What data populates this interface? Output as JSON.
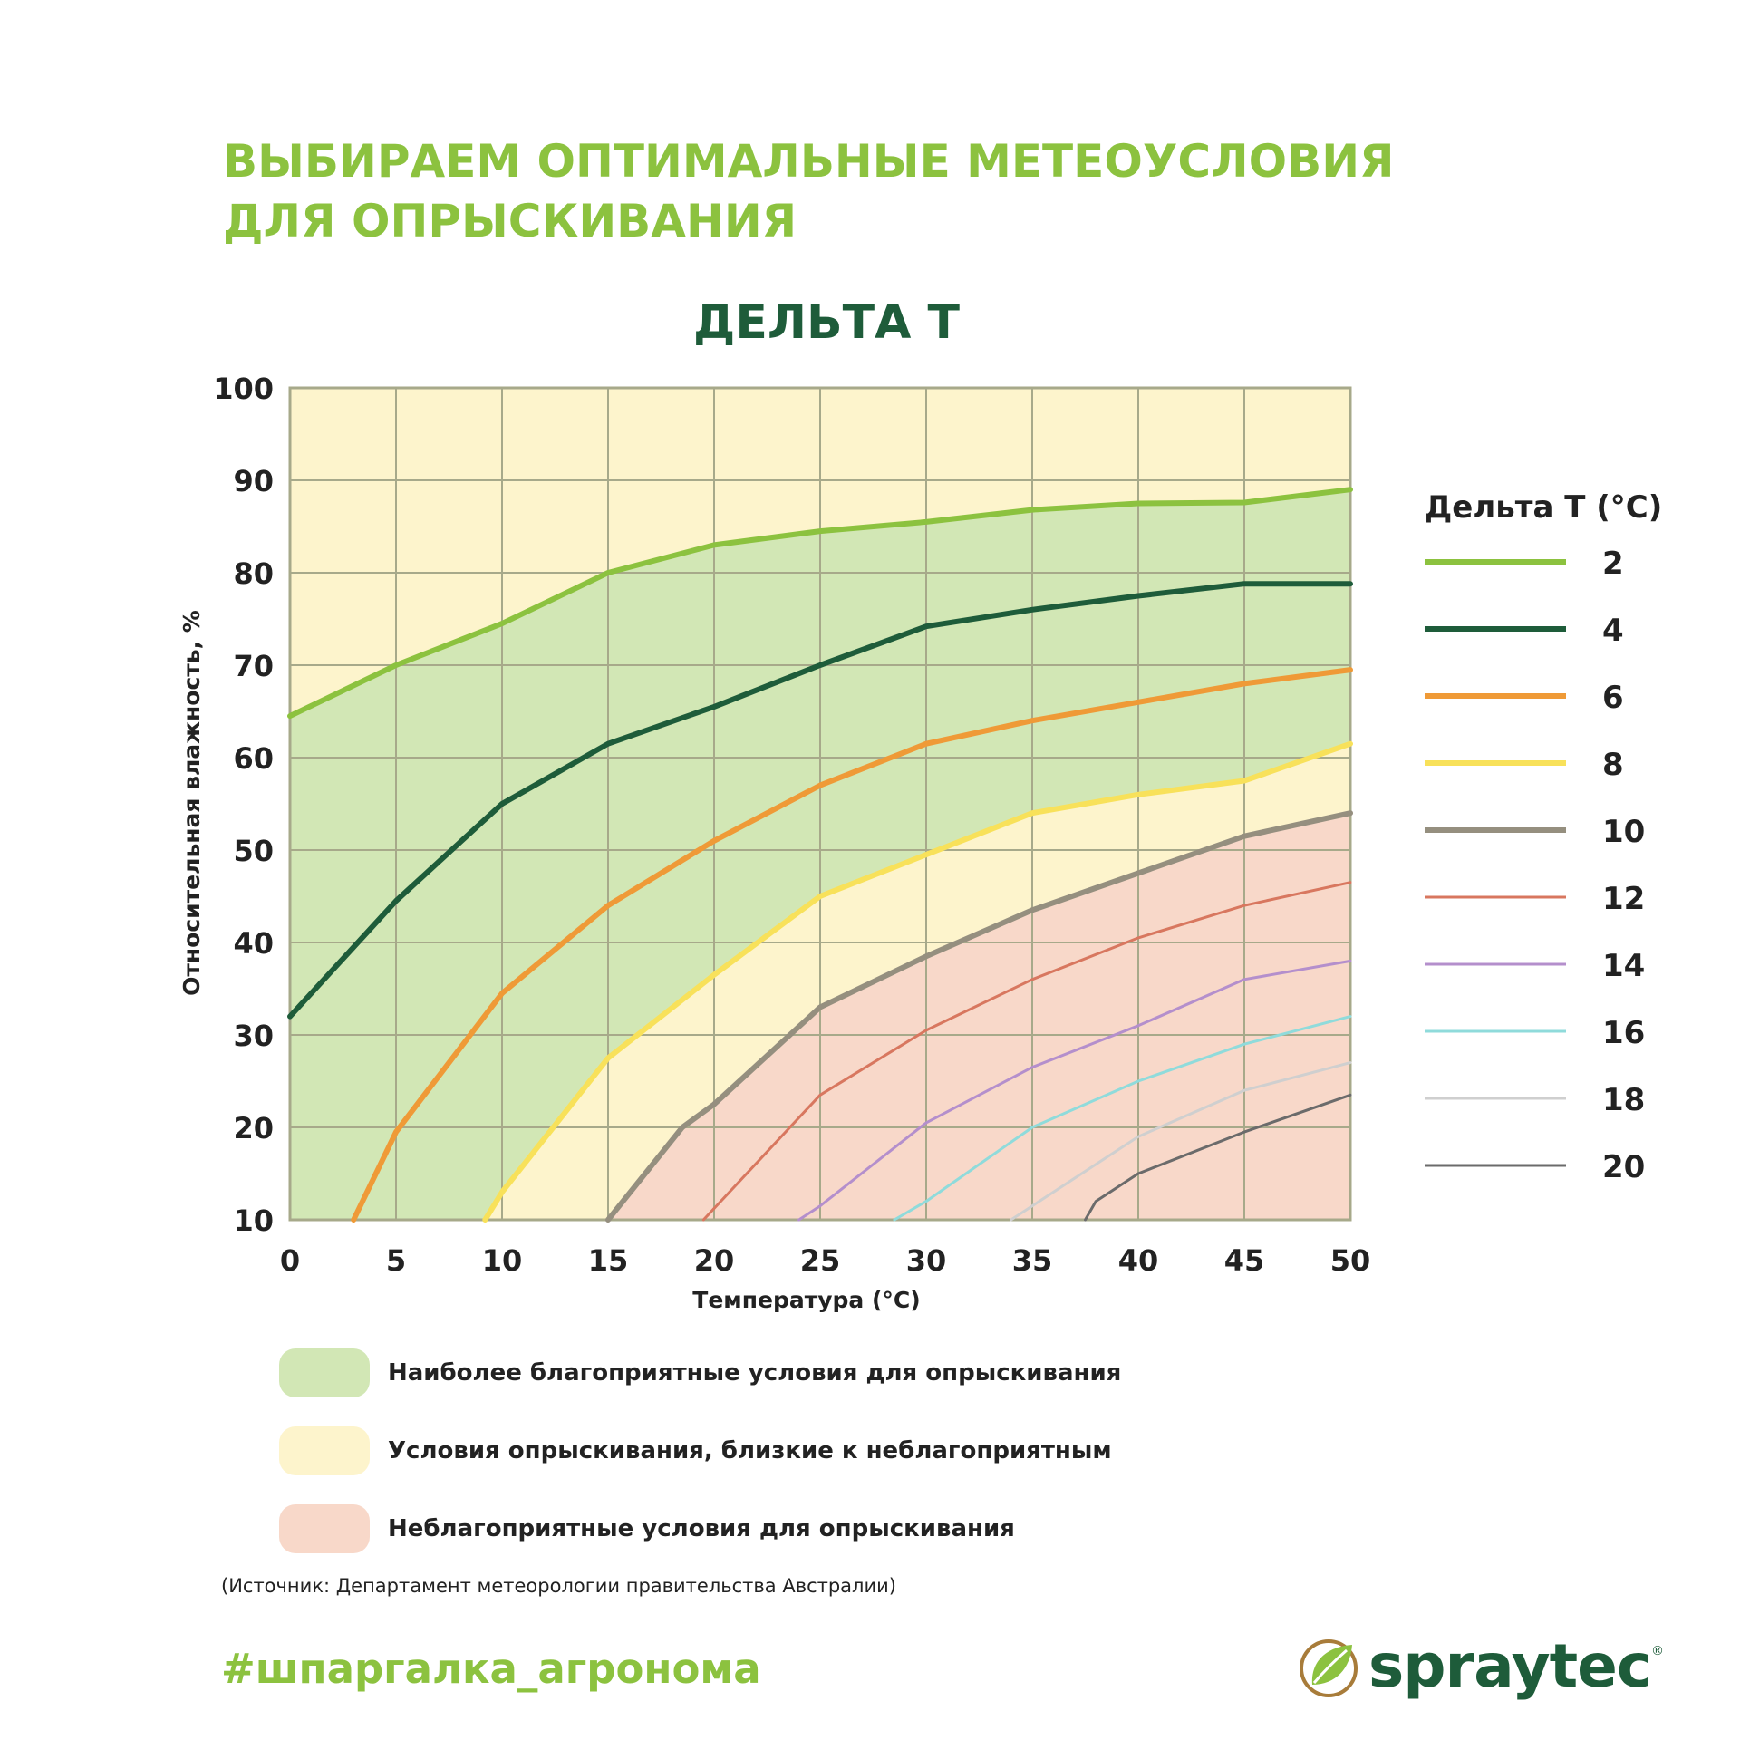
{
  "header": {
    "line1": "ВЫБИРАЕМ ОПТИМАЛЬНЫЕ МЕТЕОУСЛОВИЯ",
    "line2": "ДЛЯ ОПРЫСКИВАНИЯ"
  },
  "chart_data": {
    "type": "line",
    "title": "ДЕЛЬТА Т",
    "xlabel": "Температура (°С)",
    "ylabel": "Относительная влажность, %",
    "xlim": [
      0,
      50
    ],
    "ylim": [
      10,
      100
    ],
    "x_ticks": [
      0,
      5,
      10,
      15,
      20,
      25,
      30,
      35,
      40,
      45,
      50
    ],
    "y_ticks": [
      10,
      20,
      30,
      40,
      50,
      60,
      70,
      80,
      90,
      100
    ],
    "grid": true,
    "legend_title": "Дельта Т (°С)",
    "legend_position": "right",
    "zones": [
      {
        "label": "Наиболее благоприятные условия для опрыскивания",
        "color": "#d2e7b5",
        "between": [
          "2",
          "8"
        ]
      },
      {
        "label": "Условия опрыскивания, близкие к неблагоприятным",
        "color": "#fdf4cc",
        "between": [
          "8",
          "10"
        ]
      },
      {
        "label": "Неблагоприятные условия для опрыскивания",
        "color": "#f8d8c9",
        "below": "10"
      }
    ],
    "series": [
      {
        "name": "2",
        "color": "#8cc23f",
        "width": 6,
        "points": [
          [
            0,
            64.5
          ],
          [
            5,
            70
          ],
          [
            10,
            74.5
          ],
          [
            15,
            80
          ],
          [
            20,
            83
          ],
          [
            25,
            84.5
          ],
          [
            30,
            85.5
          ],
          [
            35,
            86.8
          ],
          [
            40,
            87.5
          ],
          [
            45,
            87.6
          ],
          [
            50,
            89
          ]
        ]
      },
      {
        "name": "4",
        "color": "#1e5c3a",
        "width": 6,
        "points": [
          [
            0,
            32
          ],
          [
            5,
            44.5
          ],
          [
            10,
            55
          ],
          [
            15,
            61.5
          ],
          [
            20,
            65.5
          ],
          [
            25,
            70
          ],
          [
            30,
            74.2
          ],
          [
            35,
            76
          ],
          [
            40,
            77.5
          ],
          [
            45,
            78.8
          ],
          [
            50,
            78.8
          ]
        ]
      },
      {
        "name": "6",
        "color": "#ef9a37",
        "width": 6,
        "points": [
          [
            3,
            10
          ],
          [
            5,
            19.5
          ],
          [
            10,
            34.5
          ],
          [
            15,
            44
          ],
          [
            20,
            51
          ],
          [
            25,
            57
          ],
          [
            30,
            61.5
          ],
          [
            35,
            64
          ],
          [
            40,
            66
          ],
          [
            45,
            68
          ],
          [
            50,
            69.5
          ]
        ]
      },
      {
        "name": "8",
        "color": "#f8e15a",
        "width": 6,
        "points": [
          [
            9.2,
            10
          ],
          [
            10,
            13
          ],
          [
            15,
            27.5
          ],
          [
            20,
            36.5
          ],
          [
            25,
            45
          ],
          [
            30,
            49.5
          ],
          [
            35,
            54
          ],
          [
            40,
            56
          ],
          [
            45,
            57.5
          ],
          [
            50,
            61.5
          ]
        ]
      },
      {
        "name": "10",
        "color": "#958f7f",
        "width": 6,
        "points": [
          [
            15,
            10
          ],
          [
            18.5,
            20
          ],
          [
            20,
            22.5
          ],
          [
            25,
            33
          ],
          [
            30,
            38.5
          ],
          [
            35,
            43.5
          ],
          [
            40,
            47.5
          ],
          [
            45,
            51.5
          ],
          [
            50,
            54
          ]
        ]
      },
      {
        "name": "12",
        "color": "#d8775f",
        "width": 3,
        "points": [
          [
            19.5,
            10
          ],
          [
            25,
            23.5
          ],
          [
            30,
            30.5
          ],
          [
            35,
            36
          ],
          [
            40,
            40.5
          ],
          [
            45,
            44
          ],
          [
            50,
            46.5
          ]
        ]
      },
      {
        "name": "14",
        "color": "#b48fcc",
        "width": 3,
        "points": [
          [
            24,
            10
          ],
          [
            25,
            11.5
          ],
          [
            30,
            20.5
          ],
          [
            35,
            26.5
          ],
          [
            40,
            31
          ],
          [
            45,
            36
          ],
          [
            50,
            38
          ]
        ]
      },
      {
        "name": "16",
        "color": "#8fdbdb",
        "width": 3,
        "points": [
          [
            28.5,
            10
          ],
          [
            30,
            12
          ],
          [
            35,
            20
          ],
          [
            40,
            25
          ],
          [
            45,
            29
          ],
          [
            50,
            32
          ]
        ]
      },
      {
        "name": "18",
        "color": "#cfcfcf",
        "width": 3,
        "points": [
          [
            34,
            10
          ],
          [
            35,
            11.5
          ],
          [
            40,
            19
          ],
          [
            45,
            24
          ],
          [
            50,
            27
          ]
        ]
      },
      {
        "name": "20",
        "color": "#6b6b6b",
        "width": 3,
        "points": [
          [
            37.5,
            10
          ],
          [
            38,
            12
          ],
          [
            40,
            15
          ],
          [
            45,
            19.5
          ],
          [
            50,
            23.5
          ]
        ]
      }
    ]
  },
  "footer": {
    "source": "(Источник: Департамент метеорологии правительства Австралии)",
    "hashtag": "#шпаргалка_агронома",
    "brand": "spraytec",
    "reg_mark": "®"
  }
}
